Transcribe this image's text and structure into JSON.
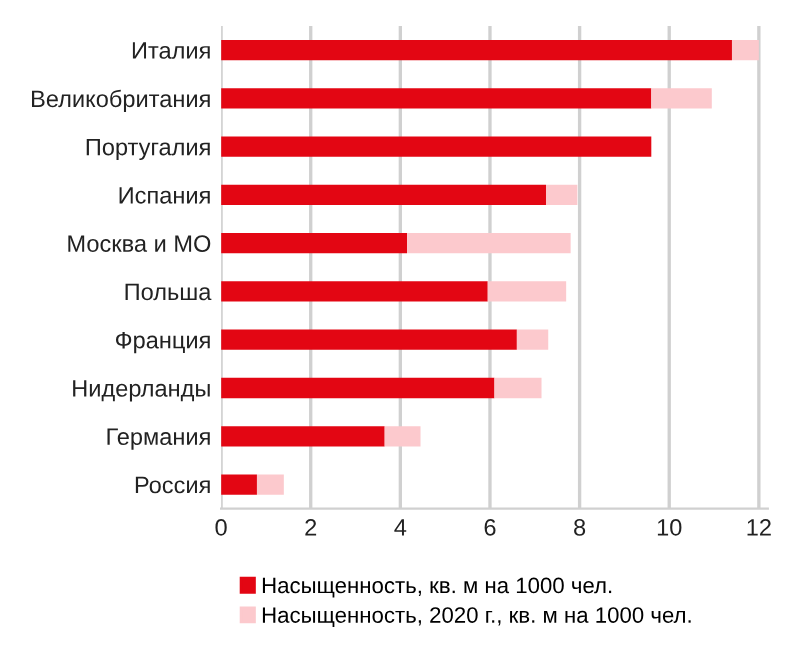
{
  "chart_data": {
    "type": "bar",
    "orientation": "horizontal",
    "stacked": true,
    "categories": [
      "Италия",
      "Великобритания",
      "Португалия",
      "Испания",
      "Москва и МО",
      "Польша",
      "Франция",
      "Нидерланды",
      "Германия",
      "Россия"
    ],
    "series": [
      {
        "name": "Насыщенность, кв. м на 1000 чел.",
        "color": "#e30613",
        "values": [
          11.4,
          9.6,
          9.6,
          7.25,
          4.15,
          5.95,
          6.6,
          6.1,
          3.65,
          0.8
        ]
      },
      {
        "name": "Насыщенность, 2020 г., кв. м на 1000 чел.",
        "color": "#fcc9cd",
        "values": [
          0.6,
          1.35,
          null,
          0.7,
          3.65,
          1.75,
          0.7,
          1.05,
          0.8,
          0.6
        ]
      }
    ],
    "xlim": [
      0,
      12.2
    ],
    "xticks": [
      0,
      2,
      4,
      6,
      8,
      10,
      12
    ],
    "grid": "x",
    "legend": "bottom"
  }
}
